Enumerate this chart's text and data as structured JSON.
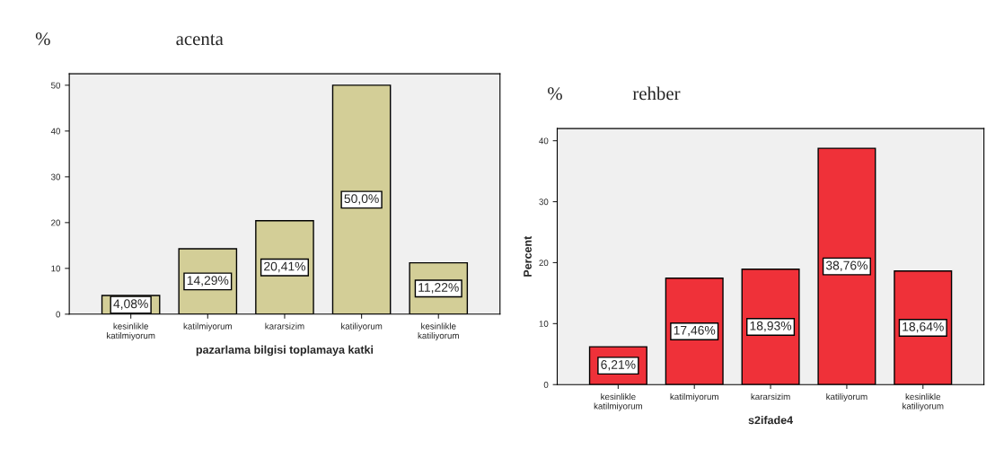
{
  "chart_data": [
    {
      "type": "bar",
      "title": "acenta",
      "annotations": [
        "%"
      ],
      "xlabel": "pazarlama bilgisi toplamaya katki",
      "categories": [
        "kesinlikle\nkatilmiyorum",
        "katilmiyorum",
        "kararsizim",
        "katiliyorum",
        "kesinlikle\nkatiliyorum"
      ],
      "values": [
        4.08,
        14.29,
        20.41,
        50.0,
        11.22
      ],
      "color": "#d3ce97",
      "value_labels": [
        "4,08%",
        "14,29%",
        "20,41%",
        "50,0%",
        "11,22%"
      ],
      "ylim": [
        0,
        52.5
      ],
      "yticks": [
        0,
        10,
        20,
        30,
        40,
        50
      ],
      "grid": false,
      "legend": false
    },
    {
      "type": "bar",
      "title": "rehber",
      "annotations": [
        "%"
      ],
      "xlabel": "s2ifade4",
      "ylabel": "Percent",
      "categories": [
        "kesinlikle\nkatilmiyorum",
        "katilmiyorum",
        "kararsizim",
        "katiliyorum",
        "kesinlikle\nkatiliyorum"
      ],
      "values": [
        6.21,
        17.46,
        18.93,
        38.76,
        18.64
      ],
      "color": "#ef3139",
      "value_labels": [
        "6,21%",
        "17,46%",
        "18,93%",
        "38,76%",
        "18,64%"
      ],
      "ylim": [
        0,
        42
      ],
      "yticks": [
        0,
        10,
        20,
        30,
        40
      ],
      "grid": false,
      "legend": false
    }
  ]
}
